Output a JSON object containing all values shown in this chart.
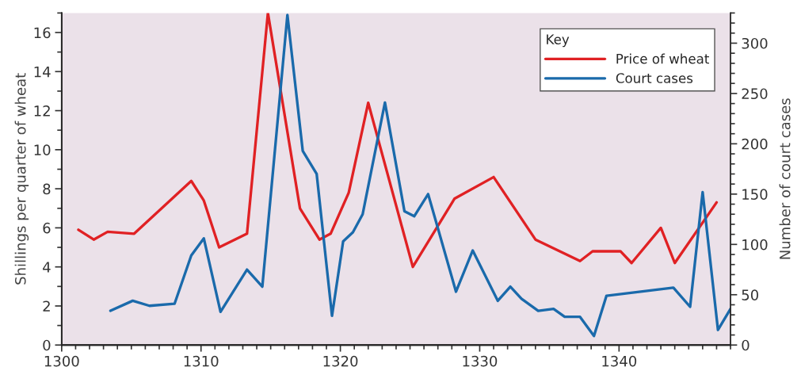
{
  "chart_data": {
    "type": "line",
    "xlabel": null,
    "ylabel": "Shillings per quarter of wheat",
    "y2label": "Number of court cases",
    "legend_title": "Key",
    "legend": "top right",
    "grid": false,
    "marker": "none",
    "line_style": "solid",
    "xlim": [
      1300,
      1348
    ],
    "ylim": [
      0,
      17
    ],
    "y2lim": [
      0,
      330
    ],
    "xticks": [
      1300,
      {
        "value": 1301,
        "label": null
      },
      {
        "value": 1302,
        "label": null
      },
      {
        "value": 1303,
        "label": null
      },
      {
        "value": 1304,
        "label": null
      },
      {
        "value": 1305,
        "label": null
      },
      {
        "value": 1306,
        "label": null
      },
      {
        "value": 1307,
        "label": null
      },
      {
        "value": 1308,
        "label": null
      },
      {
        "value": 1309,
        "label": null
      },
      1310,
      {
        "value": 1311,
        "label": null
      },
      {
        "value": 1312,
        "label": null
      },
      {
        "value": 1313,
        "label": null
      },
      {
        "value": 1314,
        "label": null
      },
      {
        "value": 1315,
        "label": null
      },
      {
        "value": 1316,
        "label": null
      },
      {
        "value": 1317,
        "label": null
      },
      {
        "value": 1318,
        "label": null
      },
      {
        "value": 1319,
        "label": null
      },
      1320,
      {
        "value": 1321,
        "label": null
      },
      {
        "value": 1322,
        "label": null
      },
      {
        "value": 1323,
        "label": null
      },
      {
        "value": 1324,
        "label": null
      },
      {
        "value": 1325,
        "label": null
      },
      {
        "value": 1326,
        "label": null
      },
      {
        "value": 1327,
        "label": null
      },
      {
        "value": 1328,
        "label": null
      },
      {
        "value": 1329,
        "label": null
      },
      1330,
      {
        "value": 1331,
        "label": null
      },
      {
        "value": 1332,
        "label": null
      },
      {
        "value": 1333,
        "label": null
      },
      {
        "value": 1334,
        "label": null
      },
      {
        "value": 1335,
        "label": null
      },
      {
        "value": 1336,
        "label": null
      },
      {
        "value": 1337,
        "label": null
      },
      {
        "value": 1338,
        "label": null
      },
      {
        "value": 1339,
        "label": null
      },
      1340,
      {
        "value": 1341,
        "label": null
      },
      {
        "value": 1342,
        "label": null
      },
      {
        "value": 1343,
        "label": null
      },
      {
        "value": 1344,
        "label": null
      },
      {
        "value": 1345,
        "label": null
      },
      {
        "value": 1346,
        "label": null
      },
      {
        "value": 1347,
        "label": null
      },
      {
        "value": 1348,
        "label": null
      }
    ],
    "yticks": [
      0,
      {
        "value": 1,
        "label": null
      },
      2,
      {
        "value": 3,
        "label": null
      },
      4,
      {
        "value": 5,
        "label": null
      },
      6,
      {
        "value": 7,
        "label": null
      },
      8,
      {
        "value": 9,
        "label": null
      },
      10,
      {
        "value": 11,
        "label": null
      },
      12,
      {
        "value": 13,
        "label": null
      },
      14,
      {
        "value": 15,
        "label": null
      },
      16,
      {
        "value": 17,
        "label": null
      }
    ],
    "y2ticks": [
      0,
      {
        "value": 10,
        "label": null
      },
      {
        "value": 20,
        "label": null
      },
      {
        "value": 30,
        "label": null
      },
      {
        "value": 40,
        "label": null
      },
      50,
      {
        "value": 60,
        "label": null
      },
      {
        "value": 70,
        "label": null
      },
      {
        "value": 80,
        "label": null
      },
      {
        "value": 90,
        "label": null
      },
      100,
      {
        "value": 110,
        "label": null
      },
      {
        "value": 120,
        "label": null
      },
      {
        "value": 130,
        "label": null
      },
      {
        "value": 140,
        "label": null
      },
      150,
      {
        "value": 160,
        "label": null
      },
      {
        "value": 170,
        "label": null
      },
      {
        "value": 180,
        "label": null
      },
      {
        "value": 190,
        "label": null
      },
      200,
      {
        "value": 210,
        "label": null
      },
      {
        "value": 220,
        "label": null
      },
      {
        "value": 230,
        "label": null
      },
      {
        "value": 240,
        "label": null
      },
      250,
      {
        "value": 260,
        "label": null
      },
      {
        "value": 270,
        "label": null
      },
      {
        "value": 280,
        "label": null
      },
      {
        "value": 290,
        "label": null
      },
      300,
      {
        "value": 310,
        "label": null
      },
      {
        "value": 320,
        "label": null
      },
      {
        "value": 330,
        "label": null
      }
    ],
    "series": [
      {
        "name": "Price of wheat",
        "color": "#e02124",
        "x": [
          1301.2,
          1302.3,
          1303.3,
          1305.2,
          1309.3,
          1310.2,
          1311.3,
          1313.3,
          1314.8,
          1317.1,
          1318.5,
          1319.3,
          1320.6,
          1322.0,
          1325.2,
          1328.2,
          1331.0,
          1334.0,
          1337.2,
          1338.1,
          1340.1,
          1340.9,
          1343.0,
          1344.0,
          1347.0
        ],
        "values": [
          5.9,
          5.4,
          5.8,
          5.7,
          8.4,
          7.4,
          5.0,
          5.7,
          17.0,
          7.0,
          5.4,
          5.7,
          7.8,
          12.4,
          4.0,
          7.5,
          8.6,
          5.4,
          4.3,
          4.8,
          4.8,
          4.2,
          6.0,
          4.2,
          7.3
        ]
      },
      {
        "name": "Court cases",
        "color": "#1a6aab",
        "axis": "y2",
        "x": [
          1303.5,
          1305.1,
          1306.3,
          1308.1,
          1309.3,
          1310.2,
          1311.4,
          1313.3,
          1314.4,
          1316.2,
          1317.3,
          1318.3,
          1319.4,
          1320.2,
          1320.9,
          1321.6,
          1323.2,
          1324.6,
          1325.3,
          1326.3,
          1328.3,
          1329.5,
          1331.3,
          1332.2,
          1333.0,
          1334.2,
          1335.3,
          1336.1,
          1337.2,
          1338.2,
          1339.1,
          1343.9,
          1345.1,
          1346.0,
          1347.1,
          1348.0
        ],
        "values": [
          34,
          44,
          39,
          41,
          89,
          106,
          33,
          75,
          58,
          328,
          193,
          170,
          29,
          103,
          112,
          130,
          241,
          133,
          128,
          150,
          53,
          94,
          44,
          58,
          46,
          34,
          36,
          28,
          28,
          9,
          49,
          57,
          38,
          152,
          15,
          36
        ]
      }
    ]
  }
}
